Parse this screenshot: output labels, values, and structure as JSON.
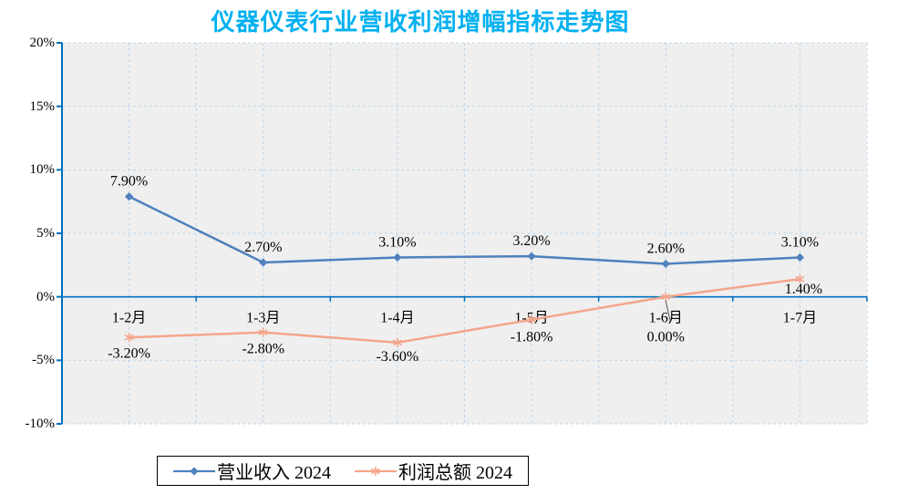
{
  "title": "仪器仪表行业营收利润增幅指标走势图",
  "chart_data": {
    "type": "line",
    "categories": [
      "1-2月",
      "1-3月",
      "1-4月",
      "1-5月",
      "1-6月",
      "1-7月"
    ],
    "series": [
      {
        "name": "营业收入 2024",
        "values": [
          7.9,
          2.7,
          3.1,
          3.2,
          2.6,
          3.1
        ],
        "labels": [
          "7.90%",
          "2.70%",
          "3.10%",
          "3.20%",
          "2.60%",
          "3.10%"
        ],
        "color": "#4F81BD",
        "marker": "diamond"
      },
      {
        "name": "利润总额 2024",
        "values": [
          -3.2,
          -2.8,
          -3.6,
          -1.8,
          0.0,
          1.4
        ],
        "labels": [
          "-3.20%",
          "-2.80%",
          "-3.60%",
          "-1.80%",
          "0.00%",
          "1.40%"
        ],
        "color": "#F4A58A",
        "marker": "asterisk"
      }
    ],
    "ylim": [
      -10,
      20
    ],
    "yticks": [
      {
        "value": 20,
        "label": "20%"
      },
      {
        "value": 15,
        "label": "15%"
      },
      {
        "value": 10,
        "label": "10%"
      },
      {
        "value": 5,
        "label": "5%"
      },
      {
        "value": 0,
        "label": "0%"
      },
      {
        "value": -5,
        "label": "-5%"
      },
      {
        "value": -10,
        "label": "-10%"
      }
    ],
    "grid": true,
    "legend_position": "bottom"
  },
  "colors": {
    "title": "#00B0F0",
    "axis": "#0070C0",
    "gridline": "#BDD7EE",
    "plot_background": "#EFEFEF",
    "text": "#000000",
    "leader_line": "#595959",
    "legend_border": "#000000"
  }
}
